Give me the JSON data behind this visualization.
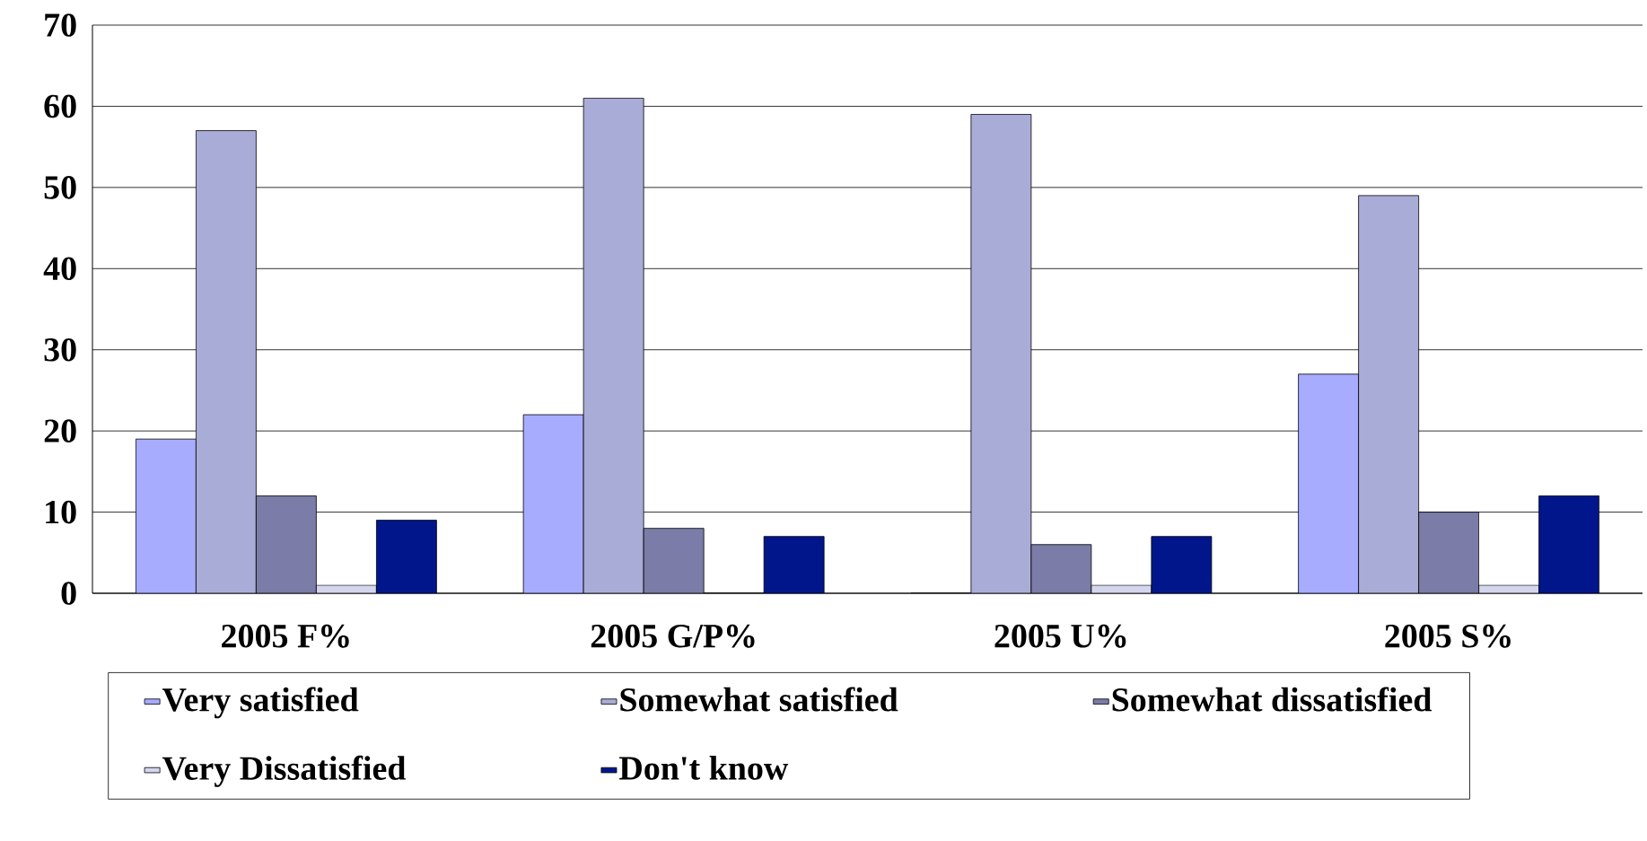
{
  "chart_data": {
    "type": "bar",
    "categories": [
      "2005 F%",
      "2005 G/P%",
      "2005 U%",
      "2005 S%"
    ],
    "series": [
      {
        "name": "Very satisfied",
        "color": "#a8acff",
        "values": [
          19,
          22,
          0,
          27
        ]
      },
      {
        "name": "Somewhat satisfied",
        "color": "#aaacd8",
        "values": [
          57,
          61,
          59,
          49
        ]
      },
      {
        "name": "Somewhat dissatisfied",
        "color": "#7b7ca8",
        "values": [
          12,
          8,
          6,
          10
        ]
      },
      {
        "name": "Very Dissatisfied",
        "color": "#d4d6ee",
        "values": [
          1,
          0,
          1,
          1
        ]
      },
      {
        "name": "Don't know",
        "color": "#02168c",
        "values": [
          9,
          7,
          7,
          12
        ]
      }
    ],
    "ylim": [
      0,
      70
    ],
    "yticks": [
      0,
      10,
      20,
      30,
      40,
      50,
      60,
      70
    ],
    "grid": "y",
    "legend": "bottom"
  }
}
